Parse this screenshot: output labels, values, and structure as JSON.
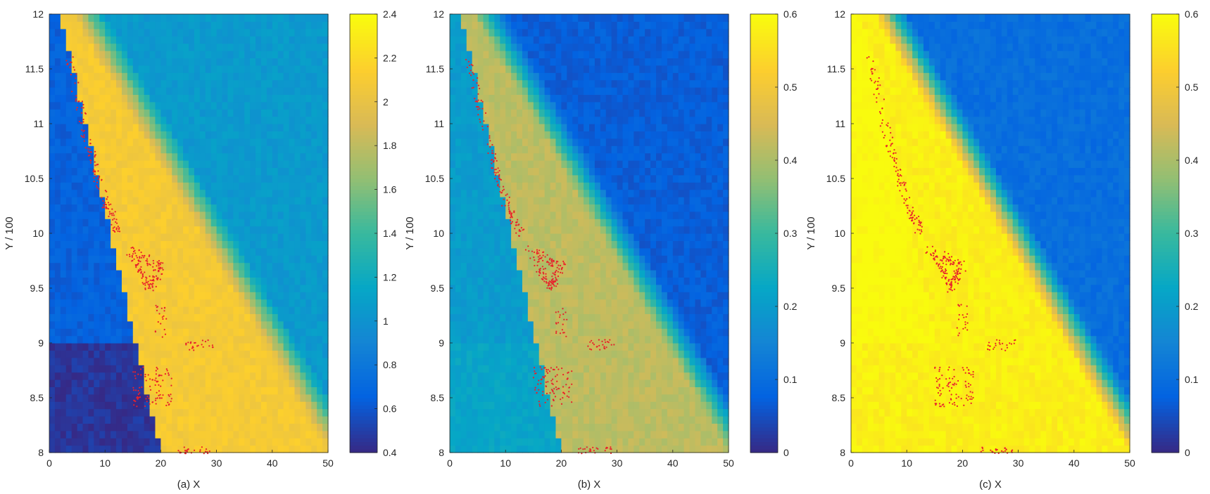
{
  "colormap": [
    "#352a87",
    "#0363e1",
    "#1485d4",
    "#06a7c6",
    "#38b99e",
    "#92bf73",
    "#d9ba56",
    "#fcce2e",
    "#f9fb0e"
  ],
  "mark_color": "#e8212b",
  "chart_data": [
    {
      "type": "heatmap",
      "title": "",
      "xlabel": "(a) X",
      "ylabel": "Y / 100",
      "xlim": [
        0,
        50
      ],
      "ylim": [
        8,
        12
      ],
      "xticks": [
        "0",
        "10",
        "20",
        "30",
        "40",
        "50"
      ],
      "yticks": [
        "8",
        "8.5",
        "9",
        "9.5",
        "10",
        "10.5",
        "11",
        "11.5",
        "12"
      ],
      "colorbar": {
        "range": [
          0.4,
          2.4
        ],
        "ticks": [
          "0.4",
          "0.6",
          "0.8",
          "1",
          "1.2",
          "1.4",
          "1.6",
          "1.8",
          "2",
          "2.2",
          "2.4"
        ]
      },
      "field": {
        "background": 1.05,
        "band": 2.1,
        "left_region": 0.65,
        "lower_left": 0.45
      }
    },
    {
      "type": "heatmap",
      "title": "",
      "xlabel": "(b) X",
      "ylabel": "Y / 100",
      "xlim": [
        0,
        50
      ],
      "ylim": [
        8,
        12
      ],
      "xticks": [
        "0",
        "10",
        "20",
        "30",
        "40",
        "50"
      ],
      "yticks": [
        "8",
        "8.5",
        "9",
        "9.5",
        "10",
        "10.5",
        "11",
        "11.5",
        "12"
      ],
      "colorbar": {
        "range": [
          0,
          0.6
        ],
        "ticks": [
          "0",
          "0.1",
          "0.2",
          "0.3",
          "0.4",
          "0.5",
          "0.6"
        ]
      },
      "field": {
        "background": 0.07,
        "band": 0.42,
        "left_region": 0.2,
        "lower_left": 0.22
      }
    },
    {
      "type": "heatmap",
      "title": "",
      "xlabel": "(c) X",
      "ylabel": "Y / 100",
      "xlim": [
        0,
        50
      ],
      "ylim": [
        8,
        12
      ],
      "xticks": [
        "0",
        "10",
        "20",
        "30",
        "40",
        "50"
      ],
      "yticks": [
        "8",
        "8.5",
        "9",
        "9.5",
        "10",
        "10.5",
        "11",
        "11.5",
        "12"
      ],
      "colorbar": {
        "range": [
          0,
          0.6
        ],
        "ticks": [
          "0",
          "0.1",
          "0.2",
          "0.3",
          "0.4",
          "0.5",
          "0.6"
        ]
      },
      "field": {
        "background": 0.1,
        "band": 0.58,
        "left_region": 0.6,
        "lower_left": 0.58
      }
    }
  ]
}
